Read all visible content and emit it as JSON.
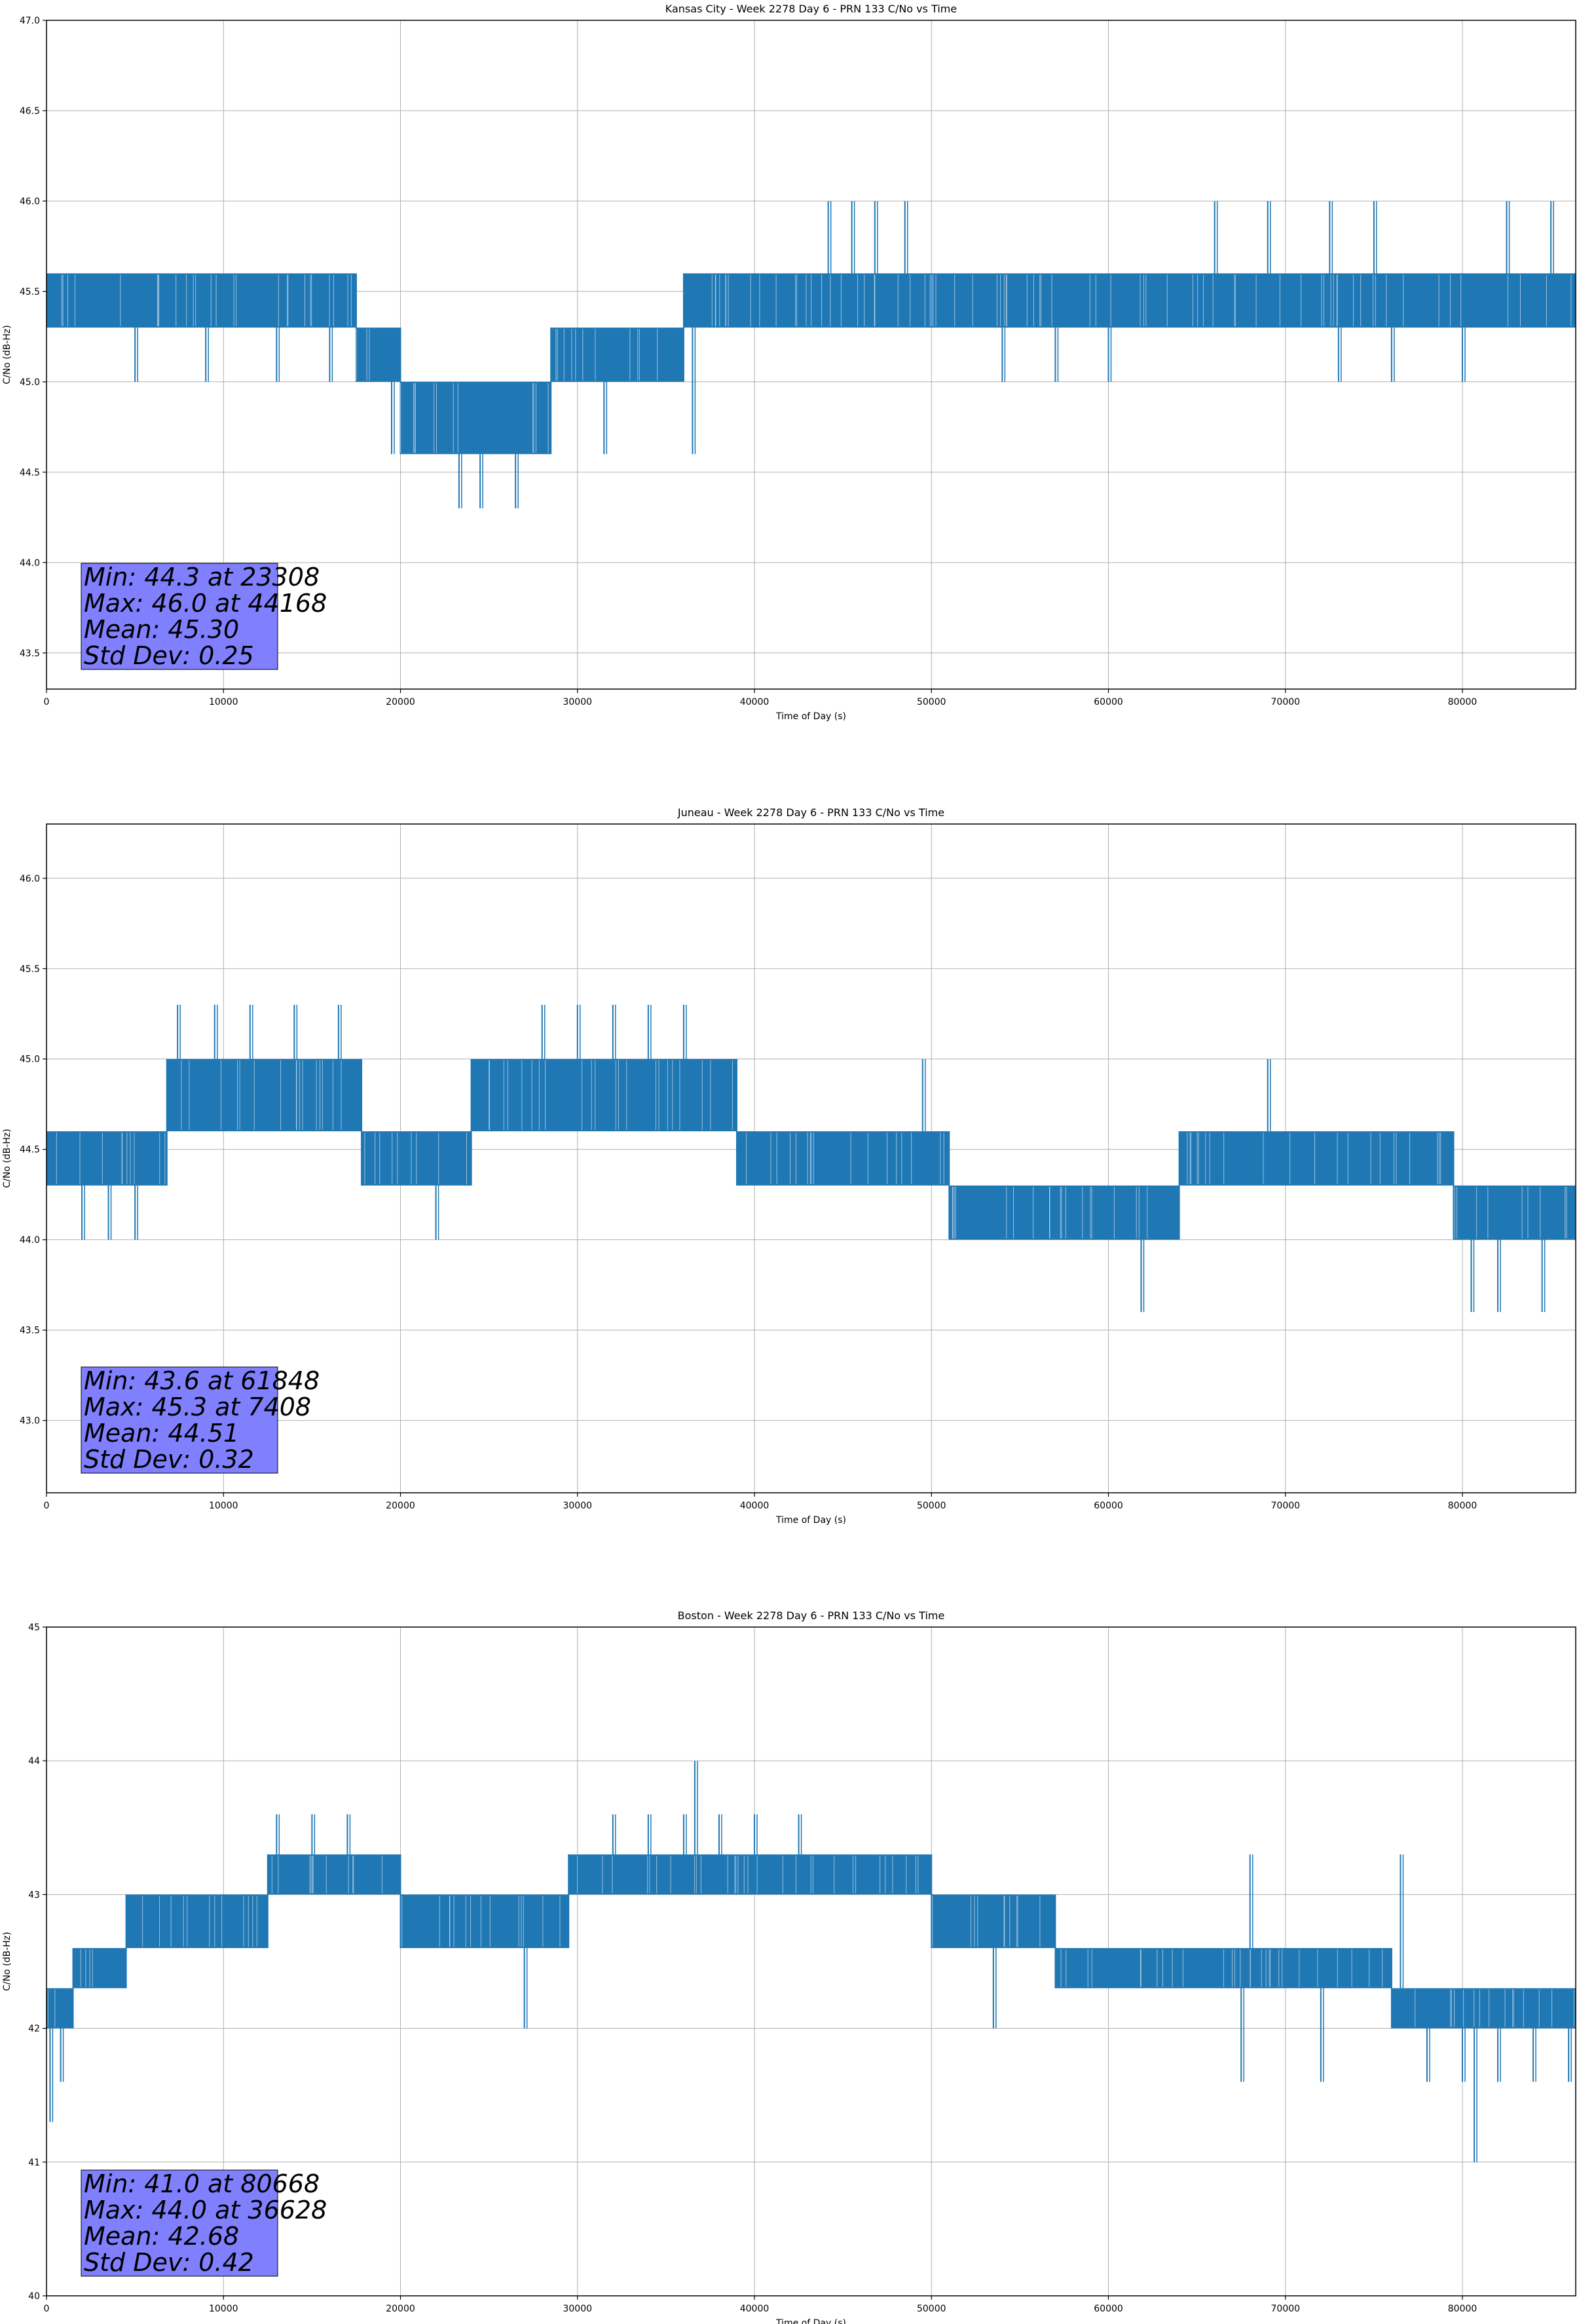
{
  "colors": {
    "line": "#1f77b4",
    "grid": "#b0b0b0",
    "stats_box": "#8080ff",
    "axis": "#000000"
  },
  "chart_data": [
    {
      "type": "line",
      "title": "Kansas City - Week 2278 Day 6 - PRN 133 C/No vs Time",
      "xlabel": "Time of Day (s)",
      "ylabel": "C/No (dB-Hz)",
      "xlim": [
        0,
        86400
      ],
      "ylim": [
        43.3,
        47.0
      ],
      "xticks": [
        0,
        10000,
        20000,
        30000,
        40000,
        50000,
        60000,
        70000,
        80000
      ],
      "yticks": [
        43.5,
        44.0,
        44.5,
        45.0,
        45.5,
        46.0,
        46.5,
        47.0
      ],
      "ytick_labels": [
        "43.5",
        "44.0",
        "44.5",
        "45.0",
        "45.5",
        "46.0",
        "46.5",
        "47.0"
      ],
      "grid": true,
      "stats": [
        "Min: 44.3 at 23308",
        "Max: 46.0 at 44168",
        "Mean: 45.30",
        "Std Dev: 0.25"
      ],
      "series": [
        {
          "band_segments": [
            {
              "x": [
                0,
                17500
              ],
              "y": [
                45.3,
                45.6
              ]
            },
            {
              "x": [
                17500,
                20000
              ],
              "y": [
                45.0,
                45.3
              ]
            },
            {
              "x": [
                20000,
                28500
              ],
              "y": [
                44.6,
                45.0
              ]
            },
            {
              "x": [
                28500,
                36000
              ],
              "y": [
                45.0,
                45.3
              ]
            },
            {
              "x": [
                36000,
                86400
              ],
              "y": [
                45.3,
                45.6
              ]
            }
          ],
          "values": [
            [
              23308,
              44.3
            ],
            [
              24500,
              44.3
            ],
            [
              26500,
              44.3
            ],
            [
              31500,
              44.6
            ],
            [
              36500,
              44.6
            ],
            [
              44168,
              46.0
            ],
            [
              45500,
              46.0
            ],
            [
              46800,
              46.0
            ],
            [
              48500,
              46.0
            ],
            [
              66000,
              46.0
            ],
            [
              69000,
              46.0
            ],
            [
              72500,
              46.0
            ],
            [
              75000,
              46.0
            ],
            [
              82500,
              46.0
            ],
            [
              85000,
              46.0
            ],
            [
              5000,
              45.0
            ],
            [
              9000,
              45.0
            ],
            [
              13000,
              45.0
            ],
            [
              16000,
              45.0
            ],
            [
              19500,
              44.6
            ],
            [
              40000,
              45.6
            ],
            [
              54000,
              45.0
            ],
            [
              57000,
              45.0
            ],
            [
              60000,
              45.0
            ],
            [
              73000,
              45.0
            ],
            [
              76000,
              45.0
            ],
            [
              80000,
              45.0
            ]
          ]
        }
      ]
    },
    {
      "type": "line",
      "title": "Juneau - Week 2278 Day 6 - PRN 133 C/No vs Time",
      "xlabel": "Time of Day (s)",
      "ylabel": "C/No (dB-Hz)",
      "xlim": [
        0,
        86400
      ],
      "ylim": [
        42.6,
        46.3
      ],
      "xticks": [
        0,
        10000,
        20000,
        30000,
        40000,
        50000,
        60000,
        70000,
        80000
      ],
      "yticks": [
        43.0,
        43.5,
        44.0,
        44.5,
        45.0,
        45.5,
        46.0
      ],
      "ytick_labels": [
        "43.0",
        "43.5",
        "44.0",
        "44.5",
        "45.0",
        "45.5",
        "46.0"
      ],
      "grid": true,
      "stats": [
        "Min: 43.6 at 61848",
        "Max: 45.3 at 7408",
        "Mean: 44.51",
        "Std Dev: 0.32"
      ],
      "series": [
        {
          "band_segments": [
            {
              "x": [
                0,
                6800
              ],
              "y": [
                44.3,
                44.6
              ]
            },
            {
              "x": [
                6800,
                17800
              ],
              "y": [
                44.6,
                45.0
              ]
            },
            {
              "x": [
                17800,
                24000
              ],
              "y": [
                44.3,
                44.6
              ]
            },
            {
              "x": [
                24000,
                39000
              ],
              "y": [
                44.6,
                45.0
              ]
            },
            {
              "x": [
                39000,
                51000
              ],
              "y": [
                44.3,
                44.6
              ]
            },
            {
              "x": [
                51000,
                64000
              ],
              "y": [
                44.0,
                44.3
              ]
            },
            {
              "x": [
                64000,
                73000
              ],
              "y": [
                44.3,
                44.6
              ]
            },
            {
              "x": [
                73000,
                79500
              ],
              "y": [
                44.3,
                44.6
              ]
            },
            {
              "x": [
                79500,
                86400
              ],
              "y": [
                44.0,
                44.3
              ]
            }
          ],
          "values": [
            [
              61848,
              43.6
            ],
            [
              80500,
              43.6
            ],
            [
              82000,
              43.6
            ],
            [
              84500,
              43.6
            ],
            [
              7408,
              45.3
            ],
            [
              9500,
              45.3
            ],
            [
              11500,
              45.3
            ],
            [
              14000,
              45.3
            ],
            [
              16500,
              45.3
            ],
            [
              28000,
              45.3
            ],
            [
              30000,
              45.3
            ],
            [
              32000,
              45.3
            ],
            [
              34000,
              45.3
            ],
            [
              36000,
              45.3
            ],
            [
              69000,
              45.0
            ],
            [
              49500,
              45.0
            ],
            [
              2000,
              44.0
            ],
            [
              3500,
              44.0
            ],
            [
              22000,
              44.0
            ],
            [
              5000,
              44.0
            ],
            [
              64000,
              44.0
            ]
          ]
        }
      ]
    },
    {
      "type": "line",
      "title": "Boston - Week 2278 Day 6 - PRN 133 C/No vs Time",
      "xlabel": "Time of Day (s)",
      "ylabel": "C/No (dB-Hz)",
      "xlim": [
        0,
        86400
      ],
      "ylim": [
        40,
        45
      ],
      "xticks": [
        0,
        10000,
        20000,
        30000,
        40000,
        50000,
        60000,
        70000,
        80000
      ],
      "yticks": [
        40,
        41,
        42,
        43,
        44,
        45
      ],
      "ytick_labels": [
        "40",
        "41",
        "42",
        "43",
        "44",
        "45"
      ],
      "grid": true,
      "stats": [
        "Min: 41.0 at 80668",
        "Max: 44.0 at 36628",
        "Mean: 42.68",
        "Std Dev: 0.42"
      ],
      "series": [
        {
          "band_segments": [
            {
              "x": [
                0,
                1500
              ],
              "y": [
                42.0,
                42.3
              ]
            },
            {
              "x": [
                1500,
                4500
              ],
              "y": [
                42.3,
                42.6
              ]
            },
            {
              "x": [
                4500,
                12500
              ],
              "y": [
                42.6,
                43.0
              ]
            },
            {
              "x": [
                12500,
                20000
              ],
              "y": [
                43.0,
                43.3
              ]
            },
            {
              "x": [
                20000,
                29500
              ],
              "y": [
                42.6,
                43.0
              ]
            },
            {
              "x": [
                29500,
                43500
              ],
              "y": [
                43.0,
                43.3
              ]
            },
            {
              "x": [
                43500,
                50000
              ],
              "y": [
                43.0,
                43.3
              ]
            },
            {
              "x": [
                50000,
                57000
              ],
              "y": [
                42.6,
                43.0
              ]
            },
            {
              "x": [
                57000,
                76000
              ],
              "y": [
                42.3,
                42.6
              ]
            },
            {
              "x": [
                76000,
                86400
              ],
              "y": [
                42.0,
                42.3
              ]
            }
          ],
          "values": [
            [
              80668,
              41.0
            ],
            [
              200,
              41.3
            ],
            [
              800,
              41.6
            ],
            [
              36628,
              44.0
            ],
            [
              13000,
              43.6
            ],
            [
              15000,
              43.6
            ],
            [
              17000,
              43.6
            ],
            [
              32000,
              43.6
            ],
            [
              34000,
              43.6
            ],
            [
              36000,
              43.6
            ],
            [
              38000,
              43.6
            ],
            [
              40000,
              43.6
            ],
            [
              42500,
              43.6
            ],
            [
              68000,
              43.3
            ],
            [
              76500,
              43.3
            ],
            [
              78000,
              41.6
            ],
            [
              80000,
              41.6
            ],
            [
              82000,
              41.6
            ],
            [
              84000,
              41.6
            ],
            [
              86000,
              41.6
            ],
            [
              27000,
              42.0
            ],
            [
              53500,
              42.0
            ],
            [
              67500,
              41.6
            ],
            [
              72000,
              41.6
            ]
          ]
        }
      ]
    }
  ]
}
